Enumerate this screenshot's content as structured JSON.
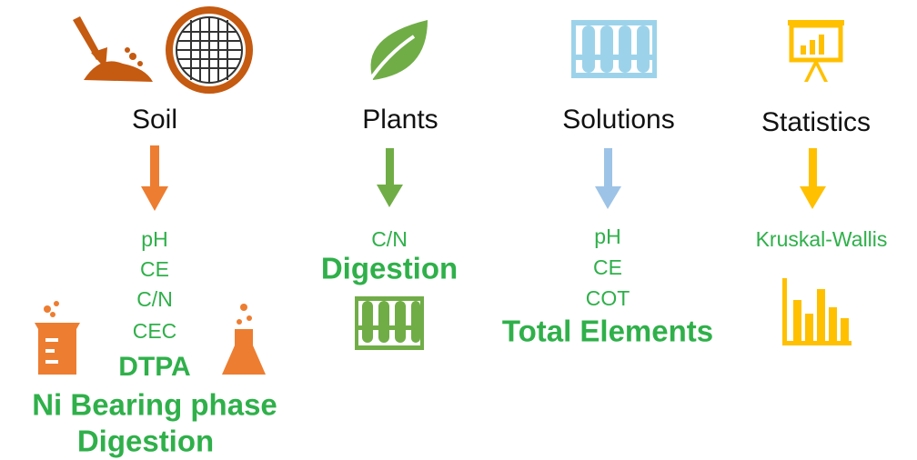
{
  "columns": [
    {
      "title": "Soil",
      "items": [
        "pH",
        "CE",
        "C/N",
        "CEC",
        "DTPA",
        "Ni Bearing phase",
        "Digestion"
      ]
    },
    {
      "title": "Plants",
      "items": [
        "C/N",
        "Digestion"
      ]
    },
    {
      "title": "Solutions",
      "items": [
        "pH",
        "CE",
        "COT",
        "Total Elements"
      ]
    },
    {
      "title": "Statistics",
      "items": [
        "Kruskal-Wallis"
      ]
    }
  ]
}
